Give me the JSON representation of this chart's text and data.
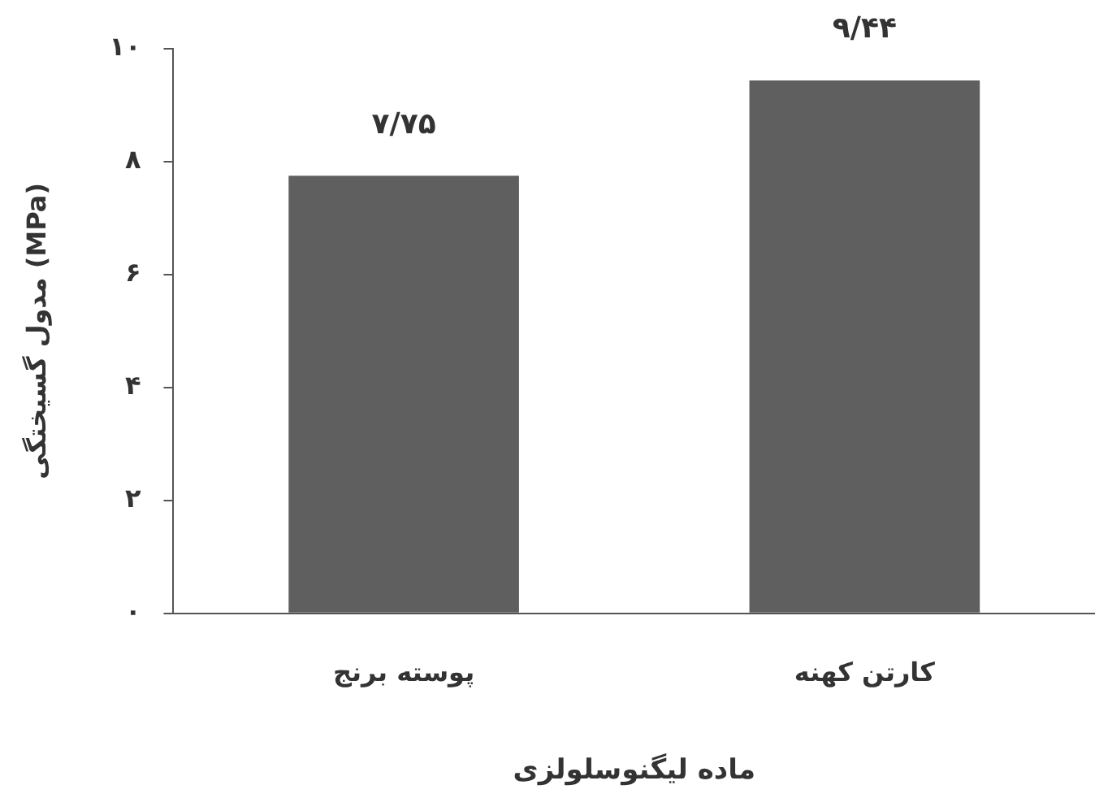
{
  "chart_data": {
    "type": "bar",
    "xlabel": "ماده لیگنوسلولزی",
    "ylabel": "مدول گسیختگی (MPa)",
    "categories": [
      "پوسته برنج",
      "کارتن کهنه"
    ],
    "series": [
      {
        "color": "#5f5f5f",
        "values": [
          7.75,
          9.44
        ],
        "value_labels": [
          "۷/۷۵",
          "۹/۴۴"
        ]
      }
    ],
    "ylim": [
      0,
      10
    ],
    "yticks": [
      {
        "value": 0,
        "label": "۰"
      },
      {
        "value": 2,
        "label": "۲"
      },
      {
        "value": 4,
        "label": "۴"
      },
      {
        "value": 6,
        "label": "۶"
      },
      {
        "value": 8,
        "label": "۸"
      },
      {
        "value": 10,
        "label": "۱۰"
      }
    ],
    "grid": false,
    "legend": false
  }
}
